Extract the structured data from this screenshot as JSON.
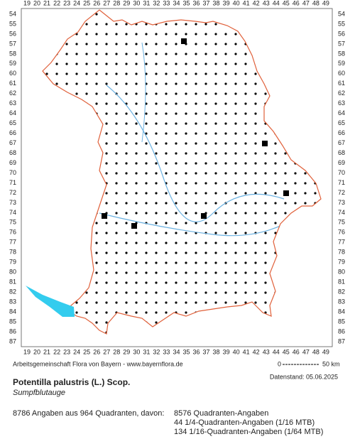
{
  "grid": {
    "columns": [
      19,
      20,
      21,
      22,
      23,
      24,
      25,
      26,
      27,
      28,
      29,
      30,
      31,
      32,
      33,
      34,
      35,
      36,
      37,
      38,
      39,
      40,
      41,
      42,
      43,
      44,
      45,
      46,
      47,
      48,
      49
    ],
    "rows": [
      54,
      55,
      56,
      57,
      58,
      59,
      60,
      61,
      62,
      63,
      64,
      65,
      66,
      67,
      68,
      69,
      70,
      71,
      72,
      73,
      74,
      75,
      76,
      77,
      78,
      79,
      80,
      81,
      82,
      83,
      84,
      85,
      86,
      87
    ]
  },
  "footer": {
    "credit": "Arbeitsgemeinschaft Flora von Bayern - www.bayernflora.de",
    "scale_start": "0",
    "scale_end": "50 km",
    "date": "Datenstand: 05.06.2025"
  },
  "species": {
    "name": "Potentilla palustris (L.) Scop.",
    "common_name": "Sumpfblutauge"
  },
  "stats": {
    "summary": "8786 Angaben aus 964 Quadranten, davon:",
    "lines": [
      "8576 Quadranten-Angaben",
      "44 1/4-Quadranten-Angaben (1/16 MTB)",
      "134 1/16-Quadranten-Angaben (1/64 MTB)"
    ]
  }
}
